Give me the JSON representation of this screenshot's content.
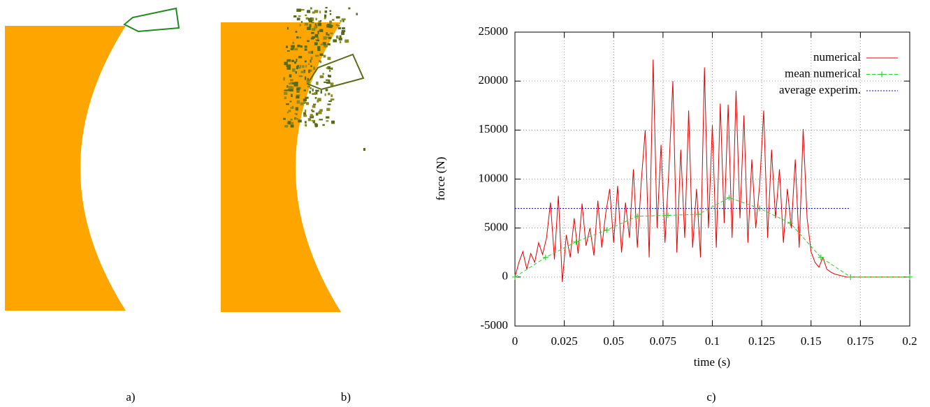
{
  "panels": [
    "a)",
    "b)",
    "c)"
  ],
  "chart_data": {
    "type": "line",
    "xlabel": "time (s)",
    "ylabel": "force (N)",
    "xlim": [
      0,
      0.2
    ],
    "xticks": [
      0,
      0.025,
      0.05,
      0.075,
      0.1,
      0.125,
      0.15,
      0.175,
      0.2
    ],
    "ylim": [
      -5000,
      25000
    ],
    "yticks": [
      -5000,
      0,
      5000,
      10000,
      15000,
      20000,
      25000
    ],
    "grid": true,
    "legend": "top-right",
    "series": [
      {
        "name": "numerical",
        "color": "#e00000",
        "style": "solid",
        "x": [
          0,
          0.002,
          0.004,
          0.006,
          0.008,
          0.01,
          0.012,
          0.014,
          0.016,
          0.018,
          0.02,
          0.022,
          0.024,
          0.026,
          0.028,
          0.03,
          0.032,
          0.034,
          0.036,
          0.038,
          0.04,
          0.042,
          0.044,
          0.046,
          0.048,
          0.05,
          0.052,
          0.054,
          0.056,
          0.058,
          0.06,
          0.062,
          0.064,
          0.066,
          0.068,
          0.07,
          0.072,
          0.074,
          0.076,
          0.078,
          0.08,
          0.082,
          0.084,
          0.086,
          0.088,
          0.09,
          0.092,
          0.094,
          0.096,
          0.098,
          0.1,
          0.102,
          0.104,
          0.106,
          0.108,
          0.11,
          0.112,
          0.114,
          0.116,
          0.118,
          0.12,
          0.122,
          0.124,
          0.126,
          0.128,
          0.13,
          0.132,
          0.134,
          0.136,
          0.138,
          0.14,
          0.142,
          0.144,
          0.146,
          0.148,
          0.15,
          0.152,
          0.154,
          0.156,
          0.158,
          0.16,
          0.162,
          0.164,
          0.166,
          0.168,
          0.17,
          0.2
        ],
        "values": [
          0,
          1500,
          2600,
          800,
          2400,
          1500,
          3500,
          2300,
          4000,
          7600,
          1800,
          8300,
          -500,
          4300,
          2000,
          6000,
          2400,
          7500,
          3200,
          5000,
          2200,
          7800,
          3000,
          6500,
          9000,
          3500,
          9300,
          2500,
          7600,
          4000,
          11000,
          3000,
          9800,
          15000,
          2000,
          22200,
          5000,
          13500,
          3500,
          11000,
          20000,
          2500,
          13000,
          4000,
          17000,
          3000,
          9000,
          2000,
          21400,
          5000,
          15500,
          3000,
          17700,
          5500,
          17600,
          4000,
          19000,
          6000,
          16500,
          3500,
          12000,
          5000,
          9500,
          17000,
          4000,
          13000,
          6000,
          11000,
          3500,
          9000,
          5000,
          12000,
          3000,
          15100,
          6000,
          2600,
          1500,
          1000,
          2000,
          800,
          500,
          300,
          200,
          100,
          0,
          0,
          0
        ]
      },
      {
        "name": "mean numerical",
        "color": "#33cc33",
        "style": "dashed",
        "marker": "+",
        "x": [
          0,
          0.0155,
          0.031,
          0.0465,
          0.062,
          0.0775,
          0.093,
          0.1085,
          0.124,
          0.1395,
          0.155,
          0.17,
          0.2
        ],
        "values": [
          0,
          2000,
          3600,
          4800,
          6200,
          6300,
          6400,
          8100,
          7000,
          5500,
          2000,
          0,
          0
        ]
      },
      {
        "name": "average experim.",
        "color": "#0000cc",
        "style": "dotted",
        "x": [
          0,
          0.17
        ],
        "values": [
          7000,
          7000
        ]
      }
    ]
  }
}
